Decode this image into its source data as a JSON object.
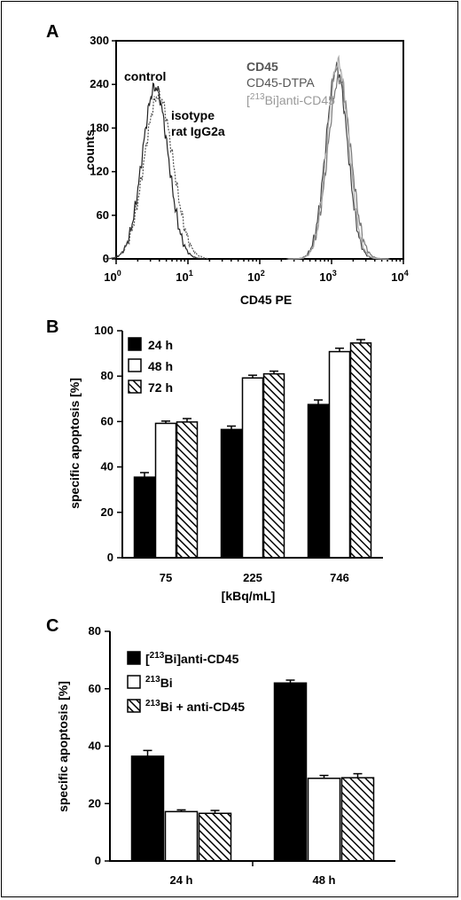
{
  "panels": {
    "A": {
      "letter": "A"
    },
    "B": {
      "letter": "B"
    },
    "C": {
      "letter": "C"
    }
  },
  "chart_data": [
    {
      "type": "line",
      "panel": "A",
      "title": "",
      "xlabel": "CD45 PE",
      "ylabel": "counts",
      "xscale": "log",
      "xlim": [
        1,
        10000
      ],
      "ylim": [
        0,
        300
      ],
      "x_tick_labels": [
        {
          "base": "10",
          "exp": "0"
        },
        {
          "base": "10",
          "exp": "1"
        },
        {
          "base": "10",
          "exp": "2"
        },
        {
          "base": "10",
          "exp": "3"
        },
        {
          "base": "10",
          "exp": "4"
        }
      ],
      "y_ticks": [
        "0",
        "60",
        "120",
        "180",
        "240",
        "300"
      ],
      "annotations": {
        "control": "control",
        "isotype_line1": "isotype",
        "isotype_line2": "rat IgG2a",
        "cd45": "CD45",
        "cd45_dtpa": "CD45-DTPA",
        "bi_pre": "[",
        "bi_sup": "213",
        "bi_post": "Bi]anti-CD45"
      },
      "series": [
        {
          "color": "#222222",
          "peak_x": 3.5,
          "peak_y": 236,
          "spread": 0.18
        },
        {
          "color": "#555555",
          "peak_x": 3.9,
          "peak_y": 225,
          "spread": 0.2
        },
        {
          "color": "#444444",
          "peak_x": 1180,
          "peak_y": 262,
          "spread": 0.15
        },
        {
          "color": "#777777",
          "peak_x": 1280,
          "peak_y": 248,
          "spread": 0.16
        },
        {
          "color": "#aaaaaa",
          "peak_x": 1230,
          "peak_y": 270,
          "spread": 0.15
        }
      ]
    },
    {
      "type": "bar",
      "panel": "B",
      "title": "",
      "xlabel": "[kBq/mL]",
      "ylabel": "specific apoptosis [%]",
      "ylim": [
        0,
        100
      ],
      "y_ticks": [
        "0",
        "20",
        "40",
        "60",
        "80",
        "100"
      ],
      "categories": [
        "75",
        "225",
        "746"
      ],
      "series": [
        {
          "name": "24 h",
          "fill": "solid",
          "values": [
            35.5,
            56.5,
            67.5
          ],
          "errors": [
            2,
            1.5,
            2
          ]
        },
        {
          "name": "48 h",
          "fill": "open",
          "values": [
            59.2,
            79.2,
            90.8
          ],
          "errors": [
            1,
            1.2,
            1.5
          ]
        },
        {
          "name": "72 h",
          "fill": "hatch",
          "values": [
            59.8,
            81,
            94.6
          ],
          "errors": [
            1.5,
            1.2,
            1.5
          ]
        }
      ]
    },
    {
      "type": "bar",
      "panel": "C",
      "title": "",
      "xlabel": "",
      "ylabel": "specific apoptosis [%]",
      "ylim": [
        0,
        80
      ],
      "y_ticks": [
        "0",
        "20",
        "40",
        "60",
        "80"
      ],
      "categories": [
        "24 h",
        "48 h"
      ],
      "series": [
        {
          "name_pre": "[",
          "name_sup": "213",
          "name_post": "Bi]anti-CD45",
          "fill": "solid",
          "values": [
            36.5,
            62
          ],
          "errors": [
            2,
            1
          ]
        },
        {
          "name_pre": "",
          "name_sup": "213",
          "name_post": "Bi",
          "fill": "open",
          "values": [
            17.2,
            28.8
          ],
          "errors": [
            0.6,
            1
          ]
        },
        {
          "name_pre": "",
          "name_sup": "213",
          "name_post": "Bi + anti-CD45",
          "fill": "hatch",
          "values": [
            16.6,
            29
          ],
          "errors": [
            1,
            1.4
          ]
        }
      ]
    }
  ]
}
